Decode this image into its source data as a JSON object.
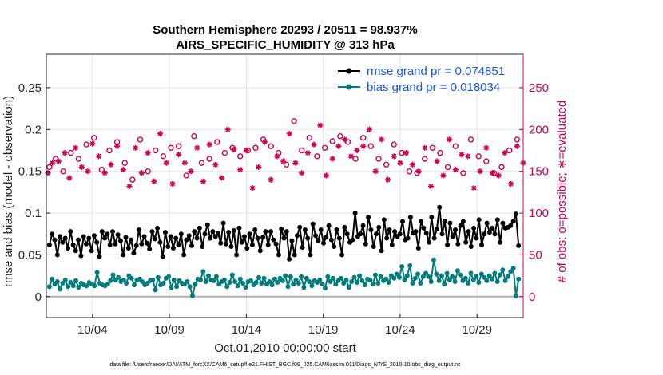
{
  "chart_data": {
    "type": "line",
    "title": "Southern Hemisphere 20293 / 20511 = 98.937%",
    "subtitle": "AIRS_SPECIFIC_HUMIDITY @ 313 hPa",
    "xlabel": "Oct.01,2010 00:00:00 start",
    "ylabel_left": "rmse and bias (model - observation)",
    "ylabel_right": "# of obs: o=possible; ∗=evaluated",
    "x_tick_labels": [
      "10/04",
      "10/09",
      "10/14",
      "10/19",
      "10/24",
      "10/29"
    ],
    "x_tick_days": [
      3,
      8,
      13,
      18,
      23,
      28
    ],
    "xlim_days": [
      0,
      31
    ],
    "ylim_left": [
      -0.025,
      0.29
    ],
    "yticks_left": [
      "0",
      "0.05",
      "0.1",
      "0.15",
      "0.2",
      "0.25"
    ],
    "ylim_right": [
      -25,
      290
    ],
    "yticks_right": [
      "0",
      "50",
      "100",
      "150",
      "200",
      "250"
    ],
    "grid": true,
    "legend_position": "top-right",
    "colors": {
      "rmse": "#000000",
      "bias": "#007c7c",
      "obs": "#cc0055",
      "zero": "#b0b0b0",
      "legend_text": "#1f5bd6"
    },
    "series": [
      {
        "name": "rmse grand pr = 0.074851",
        "axis": "left",
        "values": [
          0.062,
          0.075,
          0.068,
          0.05,
          0.072,
          0.065,
          0.07,
          0.058,
          0.078,
          0.062,
          0.055,
          0.068,
          0.049,
          0.072,
          0.063,
          0.07,
          0.055,
          0.073,
          0.065,
          0.048,
          0.078,
          0.07,
          0.075,
          0.062,
          0.078,
          0.063,
          0.074,
          0.067,
          0.05,
          0.071,
          0.058,
          0.068,
          0.052,
          0.061,
          0.08,
          0.063,
          0.072,
          0.064,
          0.057,
          0.078,
          0.069,
          0.082,
          0.065,
          0.048,
          0.077,
          0.06,
          0.072,
          0.058,
          0.07,
          0.062,
          0.075,
          0.05,
          0.068,
          0.073,
          0.061,
          0.078,
          0.07,
          0.082,
          0.06,
          0.075,
          0.086,
          0.07,
          0.078,
          0.072,
          0.076,
          0.064,
          0.088,
          0.063,
          0.077,
          0.06,
          0.079,
          0.05,
          0.082,
          0.065,
          0.072,
          0.058,
          0.075,
          0.062,
          0.08,
          0.07,
          0.055,
          0.071,
          0.078,
          0.062,
          0.078,
          0.068,
          0.063,
          0.05,
          0.081,
          0.07,
          0.078,
          0.045,
          0.067,
          0.05,
          0.073,
          0.083,
          0.059,
          0.08,
          0.07,
          0.05,
          0.087,
          0.073,
          0.067,
          0.08,
          0.064,
          0.071,
          0.085,
          0.068,
          0.06,
          0.08,
          0.07,
          0.05,
          0.083,
          0.075,
          0.065,
          0.068,
          0.1,
          0.072,
          0.075,
          0.085,
          0.063,
          0.095,
          0.08,
          0.06,
          0.075,
          0.083,
          0.055,
          0.092,
          0.07,
          0.08,
          0.062,
          0.078,
          0.072,
          0.075,
          0.09,
          0.068,
          0.07,
          0.095,
          0.076,
          0.078,
          0.058,
          0.09,
          0.082,
          0.076,
          0.065,
          0.095,
          0.07,
          0.081,
          0.107,
          0.075,
          0.09,
          0.062,
          0.088,
          0.072,
          0.08,
          0.063,
          0.085,
          0.09,
          0.065,
          0.078,
          0.06,
          0.082,
          0.07,
          0.092,
          0.062,
          0.075,
          0.088,
          0.077,
          0.082,
          0.075,
          0.092,
          0.065,
          0.088,
          0.082,
          0.083,
          0.085,
          0.09,
          0.099,
          0.061
        ]
      },
      {
        "name": "bias grand pr = 0.018034",
        "axis": "left",
        "values": [
          0.012,
          0.021,
          0.015,
          0.018,
          0.009,
          0.016,
          0.02,
          0.012,
          0.017,
          0.013,
          0.019,
          0.011,
          0.016,
          0.014,
          0.013,
          0.017,
          0.015,
          0.013,
          0.029,
          0.016,
          0.014,
          0.013,
          0.015,
          0.019,
          0.026,
          0.02,
          0.023,
          0.018,
          0.02,
          0.016,
          0.025,
          0.022,
          0.014,
          0.02,
          0.021,
          0.018,
          0.014,
          0.016,
          0.019,
          0.02,
          0.008,
          0.023,
          0.014,
          0.016,
          0.022,
          0.024,
          0.011,
          0.02,
          0.012,
          0.019,
          0.016,
          0.015,
          0.018,
          0.012,
          0.001,
          0.015,
          0.021,
          0.02,
          0.03,
          0.018,
          0.025,
          0.02,
          0.019,
          0.024,
          0.015,
          0.018,
          0.02,
          0.012,
          0.017,
          0.026,
          0.018,
          0.013,
          0.021,
          0.016,
          0.011,
          0.018,
          0.019,
          0.014,
          0.017,
          0.023,
          0.016,
          0.022,
          0.015,
          0.018,
          0.014,
          0.021,
          0.017,
          0.022,
          0.019,
          0.025,
          0.012,
          0.024,
          0.015,
          0.02,
          0.016,
          0.024,
          0.011,
          0.022,
          0.018,
          0.013,
          0.019,
          0.017,
          0.02,
          0.015,
          0.01,
          0.024,
          0.018,
          0.022,
          0.015,
          0.019,
          0.022,
          0.016,
          0.02,
          0.011,
          0.018,
          0.023,
          0.017,
          0.025,
          0.019,
          0.014,
          0.021,
          0.02,
          0.015,
          0.026,
          0.016,
          0.024,
          0.019,
          0.021,
          0.017,
          0.025,
          0.022,
          0.027,
          0.023,
          0.036,
          0.02,
          0.025,
          0.037,
          0.016,
          0.022,
          0.027,
          0.016,
          0.024,
          0.028,
          0.024,
          0.018,
          0.044,
          0.027,
          0.019,
          0.025,
          0.015,
          0.028,
          0.02,
          0.024,
          0.018,
          0.031,
          0.026,
          0.019,
          0.022,
          0.016,
          0.028,
          0.02,
          0.024,
          0.017,
          0.027,
          0.023,
          0.019,
          0.025,
          0.021,
          0.028,
          0.018,
          0.026,
          0.032,
          0.019,
          0.024,
          0.03,
          0.034,
          0.001,
          0.021
        ]
      },
      {
        "name": "obs possible",
        "axis": "right",
        "marker": "o",
        "x_days": [
          0.2,
          0.6,
          1.1,
          1.6,
          2.1,
          2.6,
          3.1,
          3.6,
          4.1,
          4.6,
          5.1,
          5.6,
          6.1,
          6.6,
          7.1,
          7.6,
          8.1,
          8.6,
          9.1,
          9.6,
          10.1,
          10.6,
          11.1,
          11.6,
          12.1,
          12.6,
          13.1,
          13.6,
          14.1,
          14.6,
          15.1,
          15.6,
          16.1,
          16.6,
          17.1,
          17.6,
          18.1,
          18.6,
          19.1,
          19.6,
          20.1,
          20.6,
          21.1,
          21.6,
          22.1,
          22.6,
          23.1,
          23.6,
          24.1,
          24.6,
          25.1,
          25.6,
          26.1,
          26.6,
          27.1,
          27.6,
          28.1,
          28.6,
          29.1,
          29.6,
          30.1,
          30.6
        ],
        "values": [
          155,
          165,
          150,
          172,
          165,
          182,
          190,
          152,
          175,
          185,
          160,
          140,
          188,
          150,
          175,
          168,
          178,
          180,
          145,
          192,
          160,
          165,
          185,
          172,
          178,
          168,
          175,
          178,
          188,
          180,
          172,
          158,
          210,
          175,
          190,
          168,
          178,
          186,
          192,
          185,
          165,
          190,
          180,
          165,
          158,
          182,
          172,
          150,
          148,
          165,
          178,
          172,
          155,
          180,
          148,
          188,
          168,
          162,
          148,
          155,
          175,
          188
        ]
      },
      {
        "name": "obs evaluated",
        "axis": "right",
        "marker": "*",
        "x_days": [
          0.1,
          0.4,
          0.8,
          1.2,
          1.5,
          1.9,
          2.3,
          2.7,
          3.0,
          3.4,
          3.8,
          4.2,
          4.6,
          5.0,
          5.4,
          5.8,
          6.2,
          6.6,
          7.0,
          7.4,
          7.8,
          8.2,
          8.6,
          9.0,
          9.4,
          9.8,
          10.2,
          10.6,
          11.0,
          11.4,
          11.8,
          12.2,
          12.6,
          13.0,
          13.4,
          13.8,
          14.2,
          14.6,
          15.0,
          15.4,
          15.8,
          16.2,
          16.6,
          17.0,
          17.4,
          17.8,
          18.2,
          18.6,
          19.0,
          19.4,
          19.8,
          20.2,
          20.6,
          21.0,
          21.4,
          21.8,
          22.2,
          22.6,
          23.0,
          23.4,
          23.8,
          24.2,
          24.6,
          25.0,
          25.4,
          25.8,
          26.2,
          26.6,
          27.0,
          27.4,
          27.8,
          28.2,
          28.6,
          29.0,
          29.4,
          29.8,
          30.2,
          30.6,
          31.0
        ],
        "values": [
          148,
          160,
          162,
          172,
          142,
          178,
          155,
          150,
          183,
          168,
          148,
          158,
          180,
          152,
          132,
          178,
          148,
          172,
          138,
          195,
          160,
          135,
          170,
          160,
          150,
          178,
          138,
          182,
          158,
          142,
          200,
          176,
          152,
          175,
          130,
          155,
          185,
          140,
          168,
          162,
          195,
          160,
          148,
          172,
          182,
          205,
          145,
          165,
          180,
          188,
          168,
          175,
          180,
          200,
          150,
          188,
          140,
          168,
          160,
          172,
          158,
          150,
          178,
          132,
          162,
          145,
          188,
          152,
          170,
          168,
          130,
          150,
          178,
          148,
          145,
          172,
          135,
          180,
          160
        ]
      }
    ]
  },
  "footer": {
    "text": "data file: /Users/raeder/DAI/ATM_forcXX/CAM6_setup/f.e21.FHIST_BGC.f09_025.CAM6assim.011/Diags_NTrS_2010-10/obs_diag_output.nc"
  }
}
